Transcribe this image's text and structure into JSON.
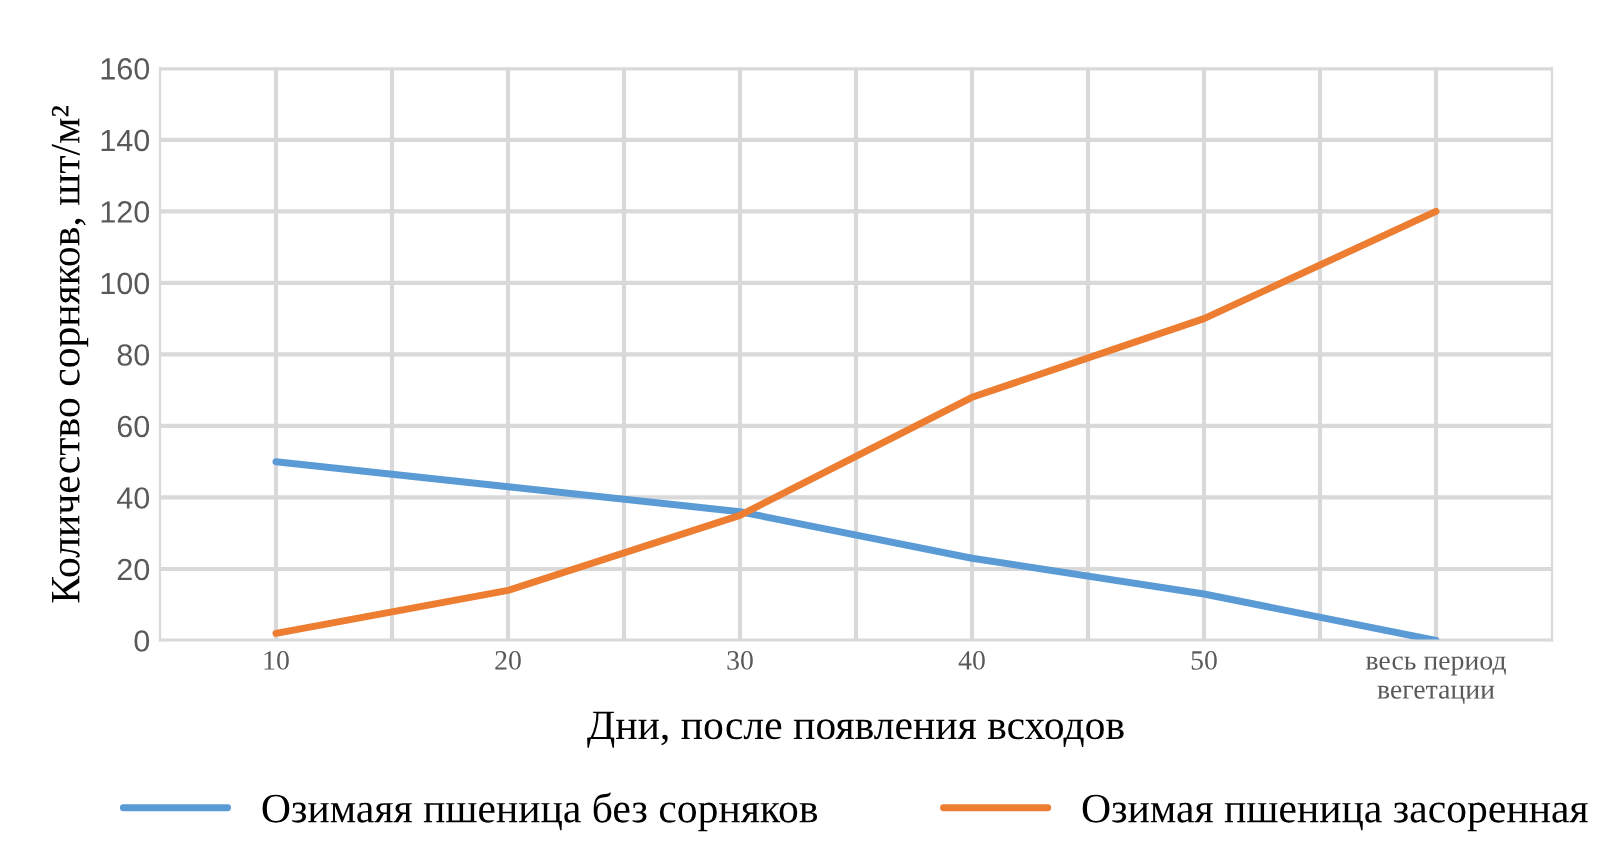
{
  "chart_data": {
    "type": "line",
    "xlabel": "Дни, после появления всходов",
    "ylabel": "Количество сорняков, шт/м²",
    "categories": [
      "10",
      "20",
      "30",
      "40",
      "50",
      "весь период\nвегетации"
    ],
    "series": [
      {
        "name": "Озимаяя пшеница без сорняков",
        "color": "#5b9bd5",
        "values": [
          50,
          43,
          36,
          23,
          13,
          0
        ]
      },
      {
        "name": "Озимая пшеница засоренная",
        "color": "#ed7d31",
        "values": [
          2,
          14,
          35,
          68,
          90,
          120
        ]
      }
    ],
    "ylim": [
      0,
      160
    ],
    "yticks": [
      0,
      20,
      40,
      60,
      80,
      100,
      120,
      140,
      160
    ],
    "grid": true,
    "legend": "bottom",
    "marker": "none",
    "line_style": "solid"
  }
}
